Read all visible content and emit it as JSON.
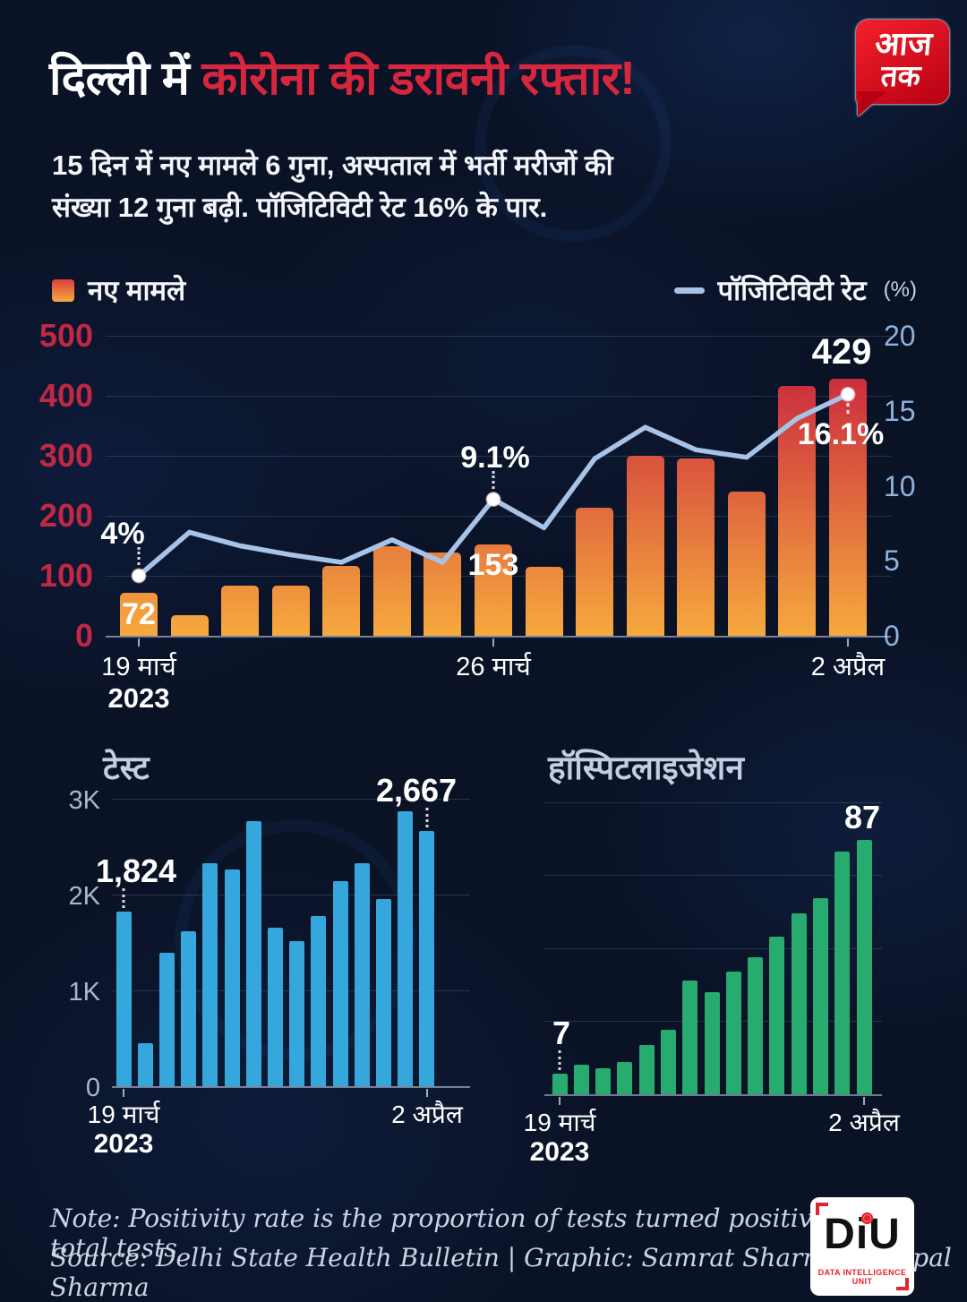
{
  "header": {
    "title_white": "दिल्ली में ",
    "title_red": "कोरोना की डरावनी रफ्तार!",
    "subtitle_line1": "15 दिन में नए मामले 6 गुना, अस्पताल में भर्ती मरीजों की",
    "subtitle_line2": "संख्या 12 गुना बढ़ी. पॉजिटिविटी रेट 16% के पार.",
    "channel_logo": {
      "line1": "आज",
      "line2": "तक"
    }
  },
  "legend": {
    "bars": "नए मामले",
    "line": "पॉजिटिविटी रेट",
    "line_unit": "(%)"
  },
  "chart_data": [
    {
      "id": "cases-positivity",
      "type": "combo-bar-line",
      "bar_series": {
        "name": "नए मामले",
        "values": [
          72,
          34,
          83,
          84,
          117,
          150,
          139,
          153,
          115,
          214,
          300,
          295,
          240,
          416,
          429
        ]
      },
      "line_series": {
        "name": "पॉजिटिविटी रेट (%)",
        "values": [
          4,
          6.9,
          6.0,
          5.4,
          4.9,
          6.4,
          4.9,
          9.1,
          7.2,
          11.8,
          13.9,
          12.4,
          11.9,
          14.5,
          16.1
        ]
      },
      "left_axis": {
        "ticks": [
          "500",
          "400",
          "300",
          "200",
          "100",
          "0"
        ],
        "max": 500
      },
      "right_axis": {
        "ticks": [
          "20",
          "15",
          "10",
          "5",
          "0"
        ],
        "max": 20
      },
      "x_ticks": [
        {
          "index": 0,
          "label": "19 मार्च",
          "sublabel": "2023"
        },
        {
          "index": 7,
          "label": "26 मार्च"
        },
        {
          "index": 14,
          "label": "2 अप्रैल"
        }
      ],
      "bar_labels": [
        {
          "index": 0,
          "text": "72"
        },
        {
          "index": 7,
          "text": "153"
        },
        {
          "index": 14,
          "text": "429"
        }
      ],
      "line_labels": [
        {
          "index": 0,
          "text": "4%"
        },
        {
          "index": 7,
          "text": "9.1%"
        },
        {
          "index": 14,
          "text": "16.1%"
        }
      ]
    },
    {
      "id": "tests",
      "type": "bar",
      "title": "टेस्ट",
      "values": [
        1824,
        450,
        1390,
        1620,
        2330,
        2260,
        2770,
        1650,
        1510,
        1780,
        2140,
        2330,
        1950,
        2870,
        2667
      ],
      "y_axis": {
        "ticks": [
          "3K",
          "2K",
          "1K",
          "0"
        ],
        "max": 3100
      },
      "x_ticks": [
        {
          "index": 0,
          "label": "19 मार्च",
          "sublabel": "2023"
        },
        {
          "index": 14,
          "label": "2 अप्रैल"
        }
      ],
      "bar_labels": [
        {
          "index": 0,
          "text": "1,824"
        },
        {
          "index": 14,
          "text": "2,667"
        }
      ]
    },
    {
      "id": "hospitalization",
      "type": "bar",
      "title": "हॉस्पिटलाइजेशन",
      "values": [
        7,
        10,
        9,
        11,
        17,
        22,
        39,
        35,
        42,
        47,
        54,
        62,
        67,
        83,
        87
      ],
      "y_axis": {
        "ticks": [],
        "gridlines_at": [
          25,
          50,
          75,
          100
        ],
        "max": 101
      },
      "x_ticks": [
        {
          "index": 0,
          "label": "19 मार्च",
          "sublabel": "2023"
        },
        {
          "index": 14,
          "label": "2 अप्रैल"
        }
      ],
      "bar_labels": [
        {
          "index": 0,
          "text": "7"
        },
        {
          "index": 14,
          "text": "87"
        }
      ]
    }
  ],
  "footer": {
    "note": "Note: Positivity rate is the proportion of tests turned positive out of total tests",
    "source": "Source: Delhi State Health Bulletin  |  Graphic: Samrat Sharma & Jaipal Sharma",
    "diu_name": "DiU",
    "diu_tagline": "DATA INTELLIGENCE UNIT"
  },
  "colors": {
    "background": "#0a1226",
    "title_accent": "#d7263d",
    "left_axis": "#c22743",
    "right_axis": "#8fb3dc",
    "bar_bottom": "#f6a93e",
    "bar_top": "#cb2d3e",
    "positivity_line": "#a7c3e7",
    "tests_bars": "#35a7dc",
    "hospitalization_bars": "#27ab6e"
  }
}
